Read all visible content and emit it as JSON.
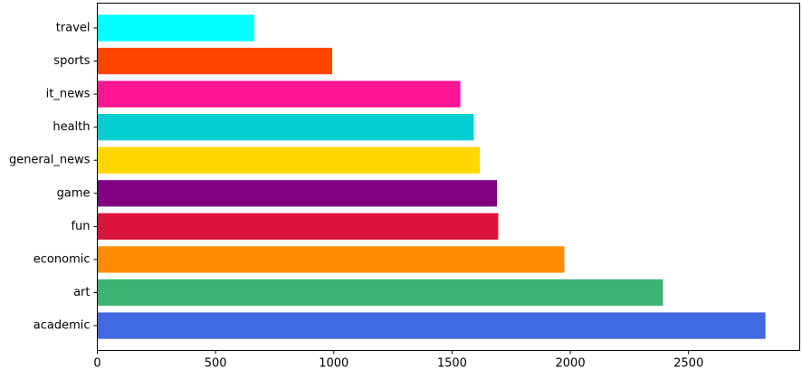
{
  "chart_data": {
    "type": "bar",
    "orientation": "horizontal",
    "title": "",
    "xlabel": "",
    "ylabel": "",
    "categories": [
      "academic",
      "art",
      "economic",
      "fun",
      "game",
      "general_news",
      "health",
      "it_news",
      "sports",
      "travel"
    ],
    "values": [
      2825,
      2392,
      1975,
      1695,
      1690,
      1617,
      1592,
      1535,
      993,
      663
    ],
    "colors": [
      "#4169e1",
      "#3cb371",
      "#ff8c00",
      "#dc143c",
      "#800080",
      "#ffd700",
      "#00ced1",
      "#ff1493",
      "#ff4500",
      "#00ffff"
    ],
    "xlim": [
      0,
      2970
    ],
    "xticks": [
      0,
      500,
      1000,
      1500,
      2000,
      2500
    ],
    "xtick_labels": [
      "0",
      "500",
      "1000",
      "1500",
      "2000",
      "2500"
    ],
    "grid": false,
    "legend": "none"
  }
}
